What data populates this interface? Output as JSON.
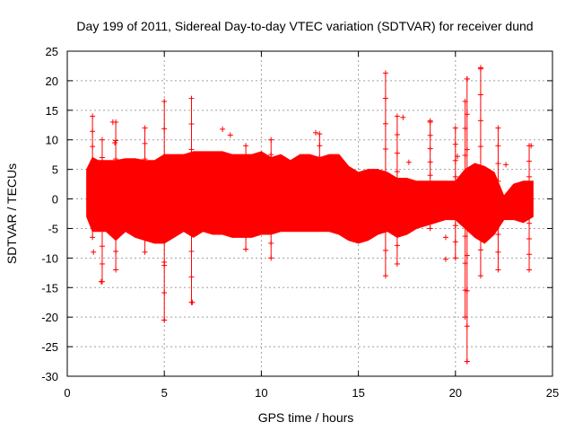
{
  "chart_data": {
    "type": "scatter",
    "title": "Day 199 of 2011, Sidereal Day-to-day VTEC variation (SDTVAR) for receiver dund",
    "xlabel": "GPS time / hours",
    "ylabel": "SDTVAR / TECUs",
    "xlim": [
      0,
      25
    ],
    "ylim": [
      -30,
      25
    ],
    "x_ticks": [
      0,
      5,
      10,
      15,
      20,
      25
    ],
    "y_ticks": [
      -30,
      -25,
      -20,
      -15,
      -10,
      -5,
      0,
      5,
      10,
      15,
      20,
      25
    ],
    "grid": true,
    "marker": "+",
    "series_color": "#ff0000",
    "envelope": {
      "x": [
        1.0,
        1.3,
        1.6,
        2.0,
        2.5,
        3.0,
        3.5,
        4.0,
        4.5,
        5.0,
        5.5,
        6.0,
        6.5,
        7.0,
        7.5,
        8.0,
        8.5,
        9.0,
        9.5,
        10.0,
        10.5,
        11.0,
        11.5,
        12.0,
        12.5,
        13.0,
        13.5,
        14.0,
        14.5,
        15.0,
        15.5,
        16.0,
        16.5,
        17.0,
        17.5,
        18.0,
        18.5,
        19.0,
        19.5,
        20.0,
        20.5,
        21.0,
        21.5,
        22.0,
        22.5,
        23.0,
        23.5,
        24.0
      ],
      "upper": [
        5,
        7,
        6.5,
        6.5,
        6.5,
        6.8,
        6.8,
        6.5,
        6.5,
        7.5,
        7.5,
        7.5,
        8.0,
        8.0,
        8.0,
        8.0,
        7.5,
        7.5,
        7.5,
        8.0,
        7.0,
        7.5,
        6.5,
        7.5,
        7.5,
        7.0,
        7.5,
        7.5,
        5.5,
        4.5,
        5.0,
        5.0,
        4.5,
        3.5,
        3.5,
        3.0,
        3.0,
        3.0,
        3.0,
        3.0,
        5.0,
        6.0,
        5.5,
        4.5,
        0.5,
        2.5,
        3.0,
        3.0
      ],
      "lower": [
        -3,
        -5.5,
        -5.5,
        -5.5,
        -7.0,
        -5.5,
        -6.5,
        -7.0,
        -7.5,
        -7.5,
        -6.5,
        -5.5,
        -6.5,
        -5.5,
        -6.0,
        -6.0,
        -6.5,
        -6.5,
        -6.5,
        -6.0,
        -6.0,
        -5.5,
        -5.5,
        -5.5,
        -5.5,
        -5.5,
        -5.5,
        -6.0,
        -7.0,
        -7.5,
        -7.0,
        -6.0,
        -5.5,
        -6.5,
        -6.0,
        -5.0,
        -4.5,
        -4.0,
        -3.5,
        -3.5,
        -5.0,
        -6.5,
        -7.5,
        -6.0,
        -3.5,
        -3.5,
        -4.0,
        -3.0
      ]
    },
    "spikes": [
      {
        "x": 1.3,
        "y_min": -6.5,
        "y_max": 14
      },
      {
        "x": 1.8,
        "y_min": -14,
        "y_max": 10
      },
      {
        "x": 2.5,
        "y_min": -12,
        "y_max": 13
      },
      {
        "x": 4.0,
        "y_min": -9,
        "y_max": 12
      },
      {
        "x": 5.0,
        "y_min": -20.5,
        "y_max": 16.5
      },
      {
        "x": 6.4,
        "y_min": -17.5,
        "y_max": 17
      },
      {
        "x": 9.2,
        "y_min": -8.5,
        "y_max": 9
      },
      {
        "x": 10.5,
        "y_min": -10,
        "y_max": 10
      },
      {
        "x": 13.0,
        "y_min": -5,
        "y_max": 11
      },
      {
        "x": 16.4,
        "y_min": -13,
        "y_max": 21.3
      },
      {
        "x": 17.0,
        "y_min": -11,
        "y_max": 14
      },
      {
        "x": 18.7,
        "y_min": -5,
        "y_max": 13
      },
      {
        "x": 20.0,
        "y_min": -10,
        "y_max": 12
      },
      {
        "x": 20.5,
        "y_min": -20,
        "y_max": 16.5
      },
      {
        "x": 20.6,
        "y_min": -27.5,
        "y_max": 20.3
      },
      {
        "x": 21.3,
        "y_min": -13,
        "y_max": 22
      },
      {
        "x": 22.2,
        "y_min": -12,
        "y_max": 12
      },
      {
        "x": 23.8,
        "y_min": -12,
        "y_max": 9
      }
    ],
    "outliers": [
      {
        "x": 2.35,
        "y": 13
      },
      {
        "x": 2.45,
        "y": 9.5
      },
      {
        "x": 1.35,
        "y": -9
      },
      {
        "x": 1.75,
        "y": -14
      },
      {
        "x": 6.45,
        "y": -17.5
      },
      {
        "x": 5.0,
        "y": -20.5
      },
      {
        "x": 5.0,
        "y": -10.7
      },
      {
        "x": 8.0,
        "y": 11.8
      },
      {
        "x": 8.4,
        "y": 10.8
      },
      {
        "x": 9.2,
        "y": -8.5
      },
      {
        "x": 12.8,
        "y": 11.2
      },
      {
        "x": 17.3,
        "y": 13.8
      },
      {
        "x": 18.7,
        "y": 13.2
      },
      {
        "x": 17.6,
        "y": 6.2
      },
      {
        "x": 19.5,
        "y": -6.5
      },
      {
        "x": 19.5,
        "y": -10.2
      },
      {
        "x": 20.6,
        "y": 20.3
      },
      {
        "x": 21.3,
        "y": 22.2
      },
      {
        "x": 20.6,
        "y": -27.5
      },
      {
        "x": 20.1,
        "y": 7.2
      },
      {
        "x": 22.6,
        "y": 5.8
      },
      {
        "x": 23.9,
        "y": 9
      }
    ]
  }
}
